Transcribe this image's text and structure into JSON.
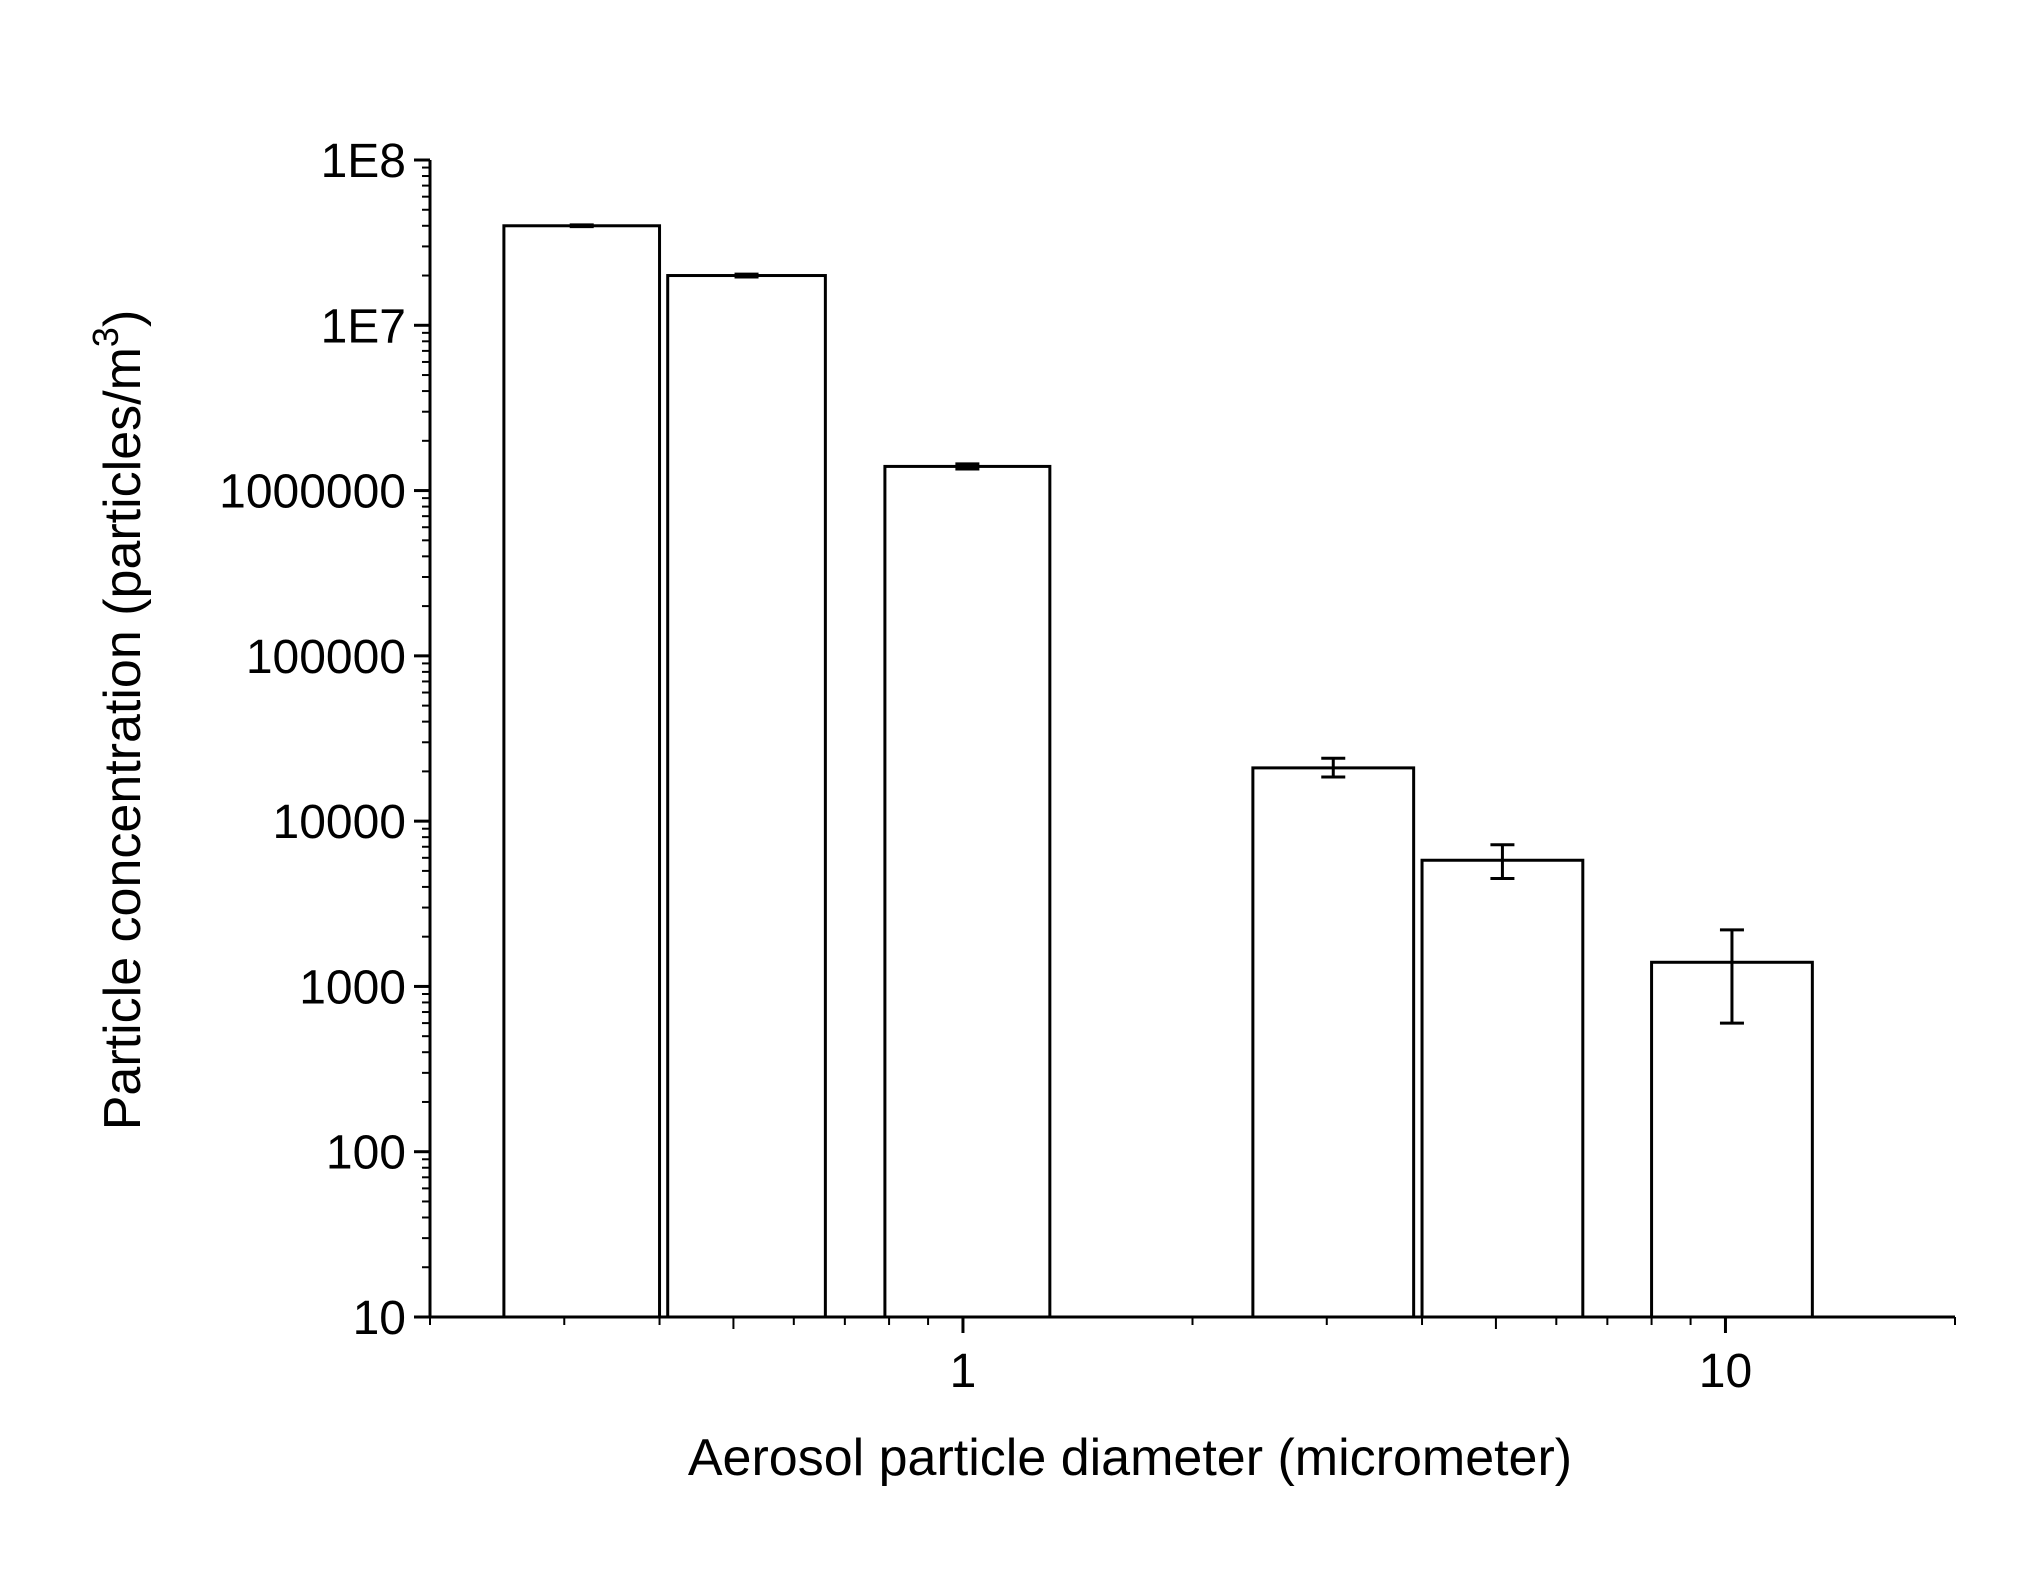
{
  "chart_data": {
    "type": "bar",
    "title": "",
    "xlabel": "Aerosol particle diameter (micrometer)",
    "ylabel": "Particle concentration (particles/m",
    "ylabel_superscript": "3",
    "ylabel_close": ")",
    "x_scale": "log",
    "y_scale": "log",
    "xlim": [
      0.2,
      20
    ],
    "ylim": [
      10,
      100000000
    ],
    "x_ticks": [
      {
        "value": 1,
        "label": "1"
      },
      {
        "value": 10,
        "label": "10"
      }
    ],
    "y_ticks": [
      {
        "value": 10,
        "label": "10"
      },
      {
        "value": 100,
        "label": "100"
      },
      {
        "value": 1000,
        "label": "1000"
      },
      {
        "value": 10000,
        "label": "10000"
      },
      {
        "value": 100000,
        "label": "100000"
      },
      {
        "value": 1000000,
        "label": "1000000"
      },
      {
        "value": 10000000,
        "label": "1E7"
      },
      {
        "value": 100000000,
        "label": "1E8"
      }
    ],
    "grid": false,
    "legend": "none",
    "bar_fill": "#ffffff",
    "line_color": "#000000",
    "bars": [
      {
        "x_start": 0.25,
        "x_end": 0.4,
        "value": 40000000,
        "err_low": 39500000,
        "err_high": 40500000
      },
      {
        "x_start": 0.41,
        "x_end": 0.66,
        "value": 20000000,
        "err_low": 19600000,
        "err_high": 20400000
      },
      {
        "x_start": 0.79,
        "x_end": 1.3,
        "value": 1400000,
        "err_low": 1350000,
        "err_high": 1450000
      },
      {
        "x_start": 2.4,
        "x_end": 3.9,
        "value": 21000,
        "err_low": 18500,
        "err_high": 24000
      },
      {
        "x_start": 4.0,
        "x_end": 6.5,
        "value": 5800,
        "err_low": 4500,
        "err_high": 7200
      },
      {
        "x_start": 8.0,
        "x_end": 13.0,
        "value": 1400,
        "err_low": 600,
        "err_high": 2200
      }
    ]
  }
}
